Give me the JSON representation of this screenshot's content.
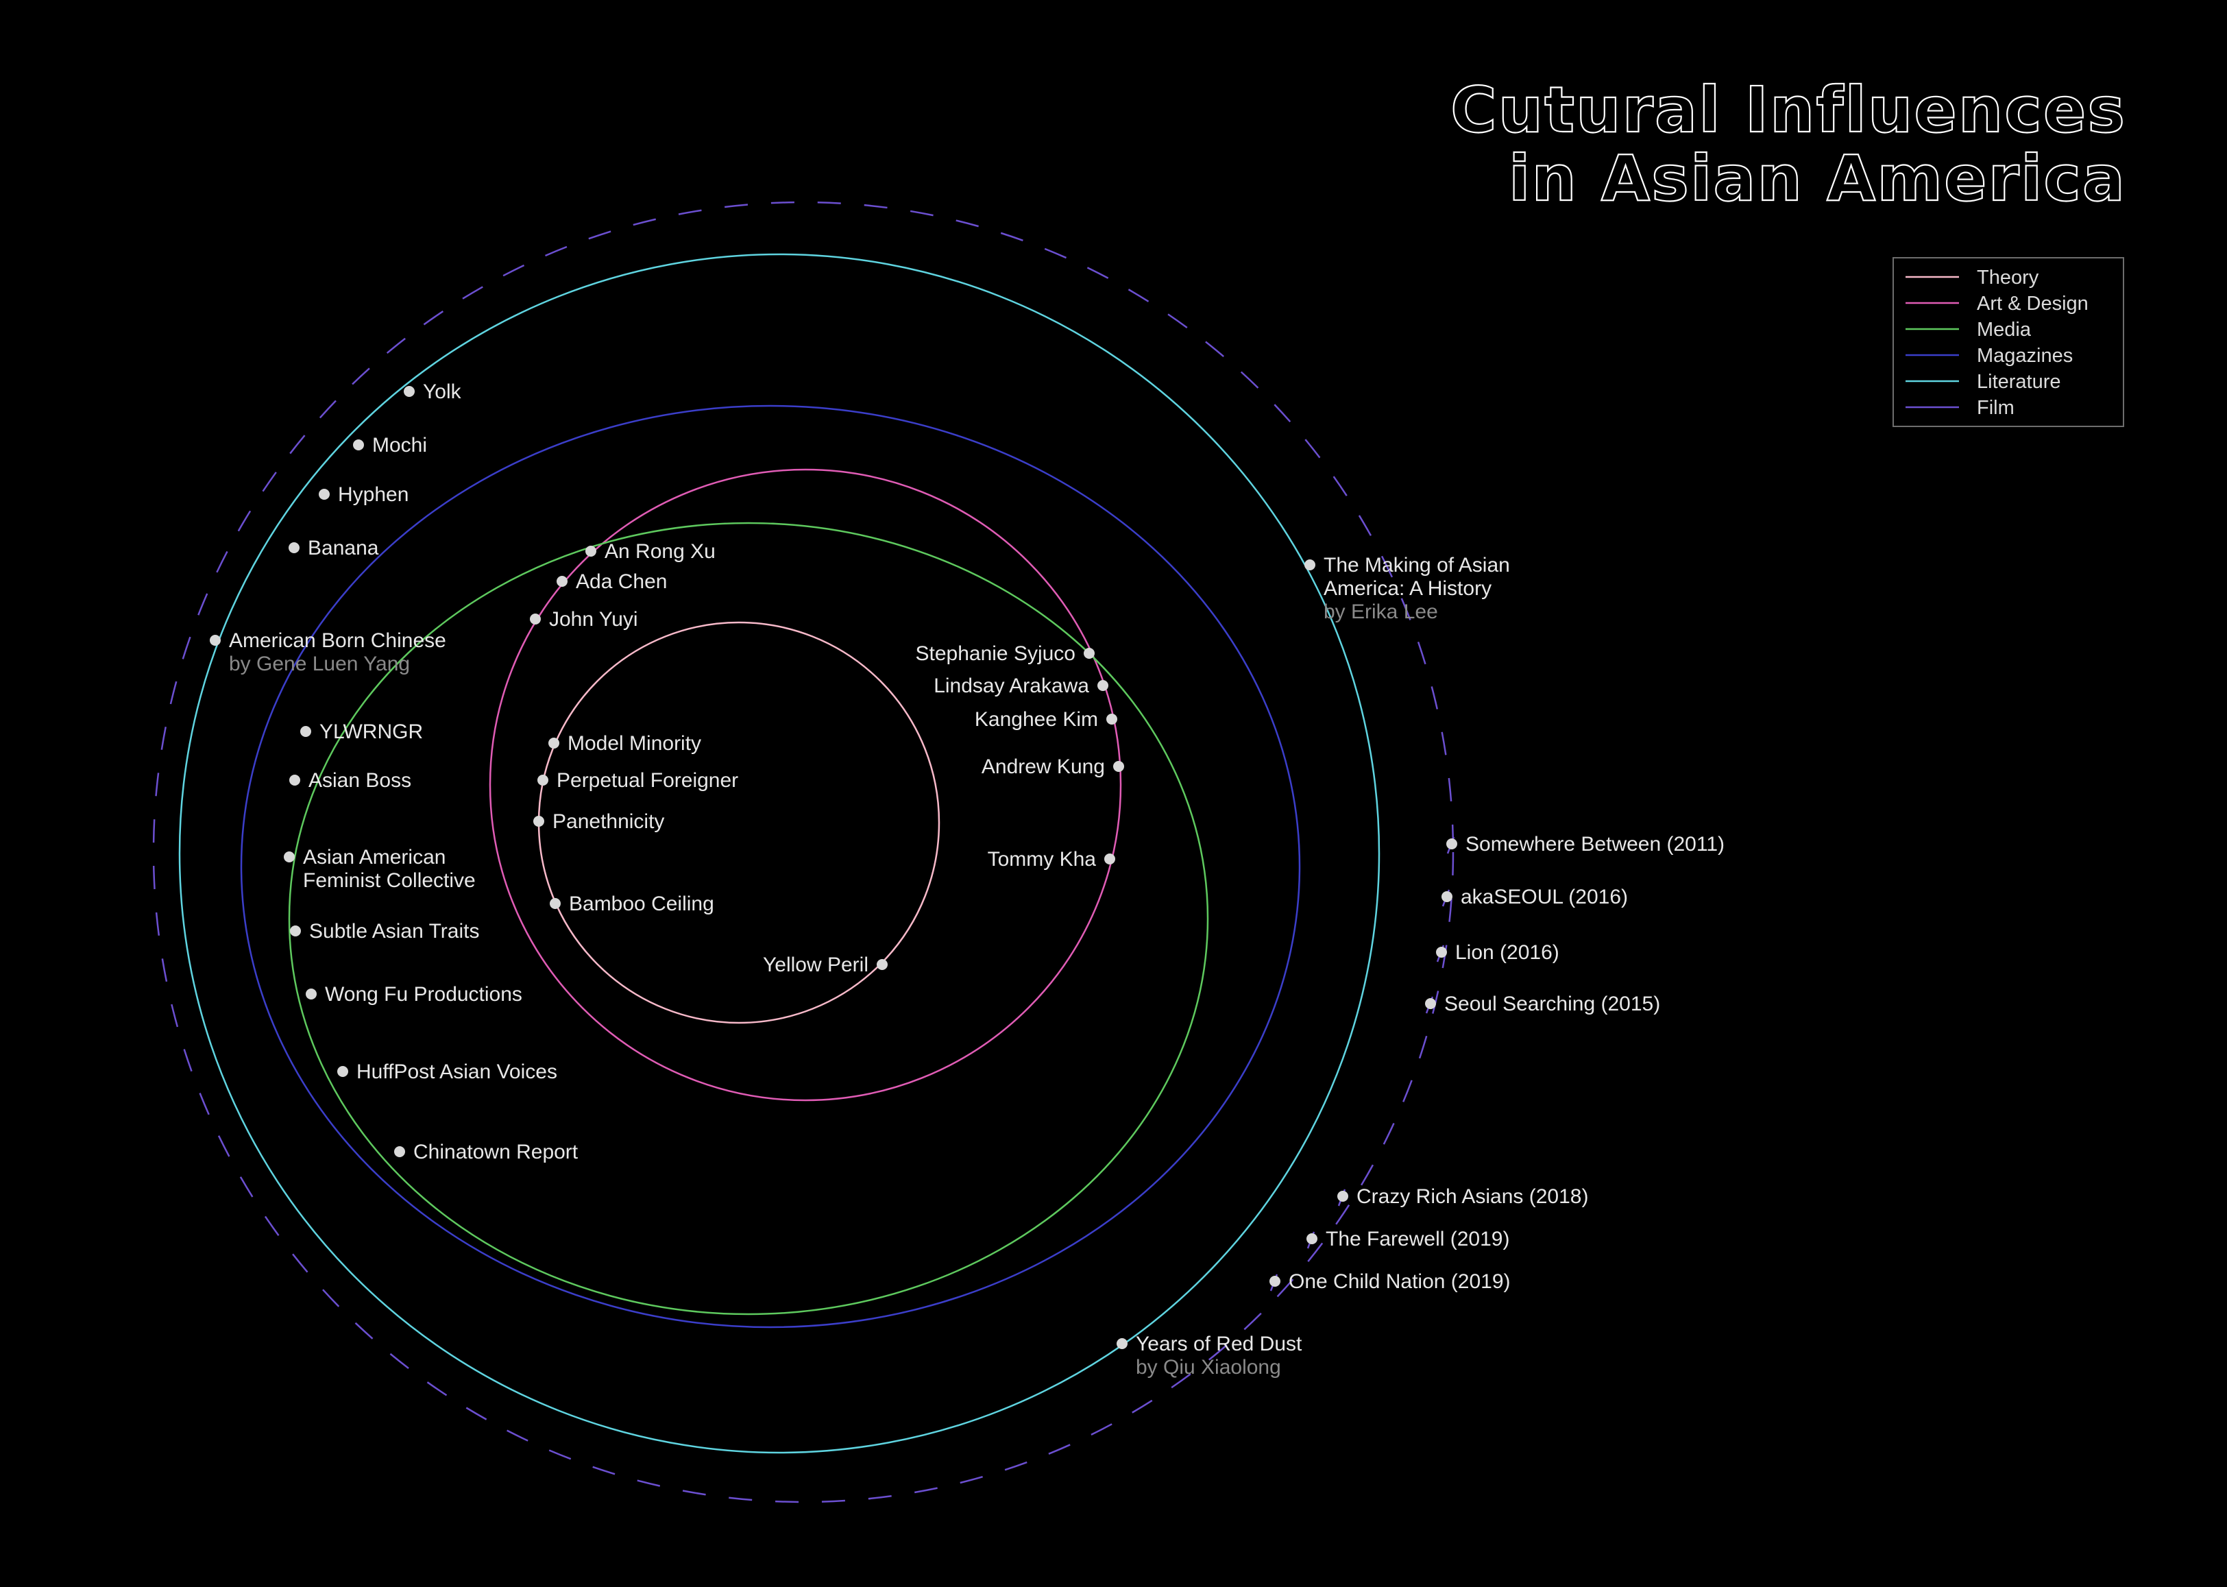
{
  "title": {
    "line1": "Cutural Influences",
    "line2": "in Asian America"
  },
  "legend": [
    {
      "name": "Theory",
      "color": "#f7b9c9"
    },
    {
      "name": "Art & Design",
      "color": "#e05cb5"
    },
    {
      "name": "Media",
      "color": "#5ec95e"
    },
    {
      "name": "Magazines",
      "color": "#3b3ec9"
    },
    {
      "name": "Literature",
      "color": "#5fd4e0"
    },
    {
      "name": "Film",
      "color": "#6b4fd0"
    }
  ],
  "nodes": [
    {
      "label": "Model Minority",
      "category": "Theory"
    },
    {
      "label": "Perpetual Foreigner",
      "category": "Theory"
    },
    {
      "label": "Panethnicity",
      "category": "Theory"
    },
    {
      "label": "Bamboo Ceiling",
      "category": "Theory"
    },
    {
      "label": "Yellow Peril",
      "category": "Theory"
    },
    {
      "label": "An Rong Xu",
      "category": "Art & Design"
    },
    {
      "label": "Ada Chen",
      "category": "Art & Design"
    },
    {
      "label": "John Yuyi",
      "category": "Art & Design"
    },
    {
      "label": "Stephanie Syjuco",
      "category": "Art & Design"
    },
    {
      "label": "Lindsay Arakawa",
      "category": "Art & Design"
    },
    {
      "label": "Kanghee Kim",
      "category": "Art & Design"
    },
    {
      "label": "Andrew Kung",
      "category": "Art & Design"
    },
    {
      "label": "Tommy Kha",
      "category": "Art & Design"
    },
    {
      "label": "Banana",
      "category": "Media"
    },
    {
      "label": "YLWRNGR",
      "category": "Media"
    },
    {
      "label": "Asian Boss",
      "category": "Media"
    },
    {
      "label": "Asian American",
      "label2": "Feminist Collective",
      "category": "Media"
    },
    {
      "label": "Subtle Asian Traits",
      "category": "Media"
    },
    {
      "label": "Wong Fu Productions",
      "category": "Media"
    },
    {
      "label": "Chinatown Report",
      "category": "Media"
    },
    {
      "label": "Yolk",
      "category": "Magazines"
    },
    {
      "label": "Mochi",
      "category": "Magazines"
    },
    {
      "label": "Hyphen",
      "category": "Magazines"
    },
    {
      "label": "HuffPost Asian Voices",
      "category": "Magazines"
    },
    {
      "label": "American Born Chinese",
      "sub": "by Gene Luen Yang",
      "category": "Literature"
    },
    {
      "label": "The Making of Asian",
      "label2": "America: A History",
      "sub": "by Erika Lee",
      "category": "Literature"
    },
    {
      "label": "Years of Red Dust",
      "sub": "by Qiu Xiaolong",
      "category": "Literature"
    },
    {
      "label": "Somewhere Between (2011)",
      "category": "Film"
    },
    {
      "label": "akaSEOUL (2016)",
      "category": "Film"
    },
    {
      "label": "Lion (2016)",
      "category": "Film"
    },
    {
      "label": "Seoul Searching (2015)",
      "category": "Film"
    },
    {
      "label": "Crazy Rich Asians (2018)",
      "category": "Film"
    },
    {
      "label": "The Farewell (2019)",
      "category": "Film"
    },
    {
      "label": "One Child Nation (2019)",
      "category": "Film"
    }
  ]
}
